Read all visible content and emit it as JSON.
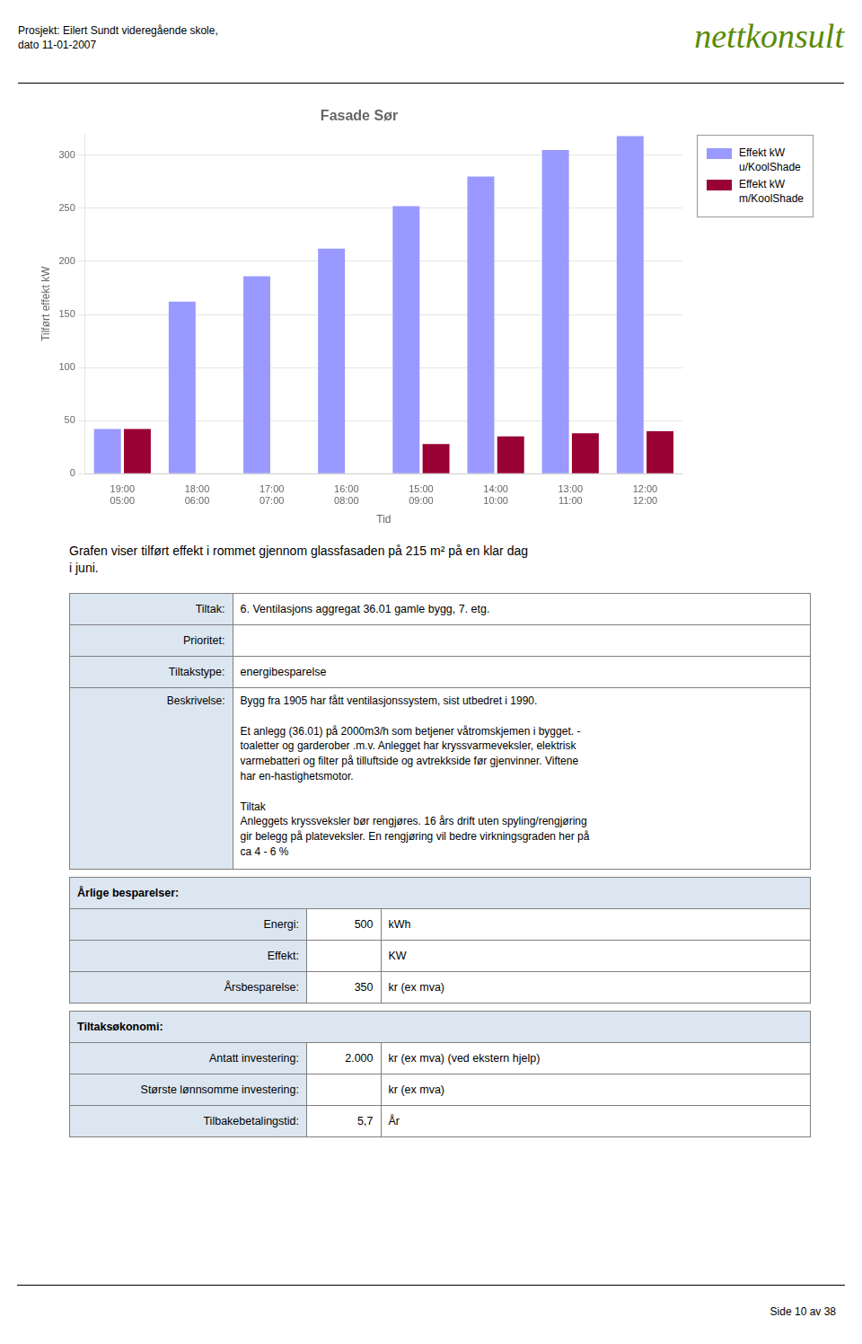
{
  "header_left": "Prosjekt: Eilert Sundt videregående skole,\ndato 11-01-2007",
  "header_right": {
    "text": "nettkonsult",
    "color": "#5a8a00"
  },
  "chart_data": {
    "type": "bar",
    "title": "Fasade Sør",
    "x_label": "Tid",
    "y_label": "Tilført effekt kW",
    "categories": [
      "19:00\n05:00",
      "18:00\n06:00",
      "17:00\n07:00",
      "16:00\n08:00",
      "15:00\n09:00",
      "14:00\n10:00",
      "13:00\n11:00",
      "12:00\n12:00"
    ],
    "series": [
      {
        "name": "Effekt kW\nu/KoolShade",
        "color": "#9999ff",
        "values": [
          42,
          162,
          186,
          212,
          252,
          280,
          305,
          318
        ]
      },
      {
        "name": "Effekt kW\nm/KoolShade",
        "color": "#990033",
        "values": [
          42,
          0,
          0,
          0,
          28,
          35,
          38,
          40
        ]
      }
    ],
    "ylim": [
      0,
      320
    ],
    "yticks": [
      0,
      50,
      100,
      150,
      200,
      250,
      300
    ],
    "grid": true,
    "legend": "right"
  },
  "caption": "Grafen viser tilført effekt i rommet gjennom glassfasaden på 215 m² på en klar dag\ni juni.",
  "table": {
    "rows": [
      {
        "label": "Tiltak:",
        "value": "6. Ventilasjons aggregat 36.01 gamle bygg, 7. etg."
      },
      {
        "label": "Prioritet:"
      },
      {
        "label": "Tiltakstype:",
        "value": "energibesparelse"
      },
      {
        "label": "Beskrivelse:",
        "value": "Bygg fra 1905 har fått ventilasjonssystem, sist utbedret i 1990.\n\nEt anlegg (36.01) på 2000m3/h  som betjener våtromskjemen i bygget. -\ntoaletter og garderober .m.v. Anlegget har kryssvarmeveksler, elektrisk\nvarmebatteri og filter på tilluftside og avtrekkside før gjenvinner. Viftene\nhar en-hastighetsmotor.\n\nTiltak\nAnleggets kryssveksler bør rengjøres. 16 års drift uten spyling/rengjøring\ngir belegg på plateveksler. En rengjøring vil bedre virkningsgraden her på\nca 4 - 6 %"
      }
    ],
    "sections": [
      {
        "title": "Årlige besparelser:",
        "rows": [
          {
            "label": "Energi:",
            "value": "500",
            "unit": "kWh"
          },
          {
            "label": "Effekt:",
            "unit": "KW"
          },
          {
            "label": "Årsbesparelse:",
            "value": "350",
            "unit": "kr (ex mva)"
          }
        ]
      },
      {
        "title": "Tiltaksøkonomi:",
        "rows": [
          {
            "label": "Antatt investering:",
            "value": "2.000",
            "unit": "kr (ex mva) (ved ekstern hjelp)"
          },
          {
            "label": "Største lønnsomme investering:",
            "unit": "kr (ex mva)"
          },
          {
            "label": "Tilbakebetalingstid:",
            "value": "5,7",
            "unit": "År"
          }
        ]
      }
    ]
  },
  "footer": "Side 10 av 38"
}
